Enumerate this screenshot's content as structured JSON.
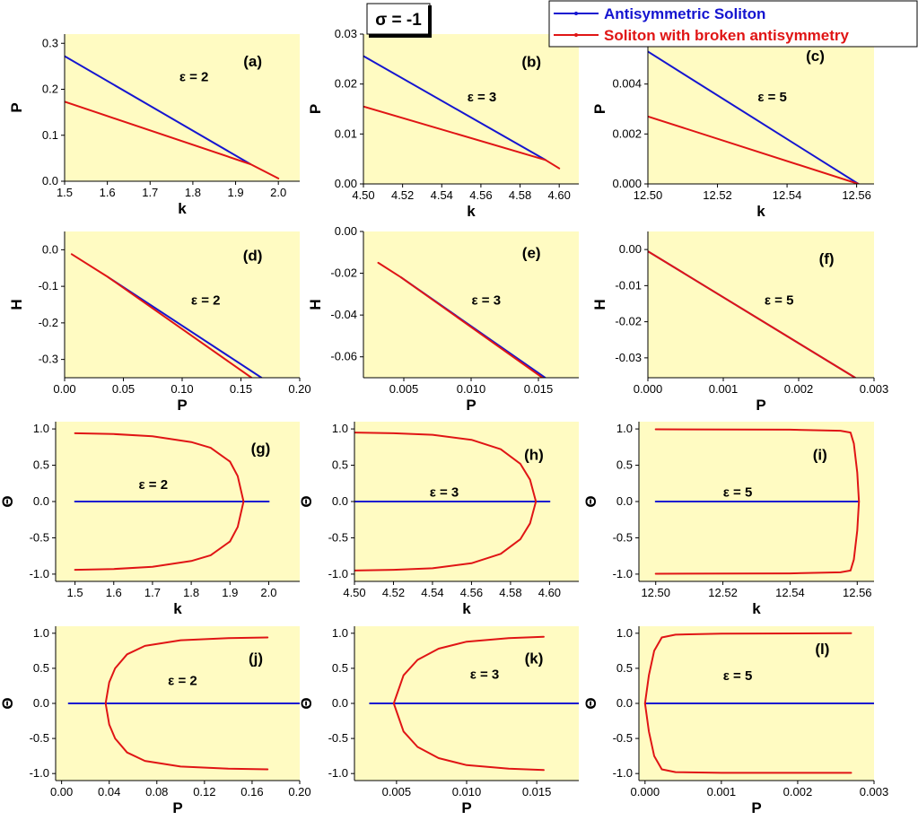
{
  "figure": {
    "sigma_label": "σ = -1",
    "legend": [
      {
        "name": "Antisymmetric Soliton",
        "color": "#1515d0"
      },
      {
        "name": "Soliton with broken antisymmetry",
        "color": "#e01515"
      }
    ]
  },
  "chart_data": [
    {
      "id": "a",
      "type": "line",
      "panel_label": "(a)",
      "annotation": "ε = 2",
      "xlabel": "k",
      "ylabel": "P",
      "xlim": [
        1.5,
        2.05
      ],
      "ylim": [
        0,
        0.32
      ],
      "xticks": [
        1.5,
        1.6,
        1.7,
        1.8,
        1.9,
        2.0
      ],
      "xtick_labels": [
        "1.5",
        "1.6",
        "1.7",
        "1.8",
        "1.9",
        "2.0"
      ],
      "yticks": [
        0,
        0.1,
        0.2,
        0.3
      ],
      "ytick_labels": [
        "0.0",
        "0.1",
        "0.2",
        "0.3"
      ],
      "series": [
        {
          "name": "Antisymmetric Soliton",
          "points": [
            [
              1.5,
              0.272
            ],
            [
              1.935,
              0.037
            ]
          ]
        },
        {
          "name": "Soliton with broken antisymmetry",
          "points": [
            [
              1.5,
              0.173
            ],
            [
              1.935,
              0.037
            ],
            [
              2.0,
              0.006
            ]
          ]
        }
      ]
    },
    {
      "id": "b",
      "type": "line",
      "panel_label": "(b)",
      "annotation": "ε = 3",
      "xlabel": "k",
      "ylabel": "P",
      "xlim": [
        4.5,
        4.61
      ],
      "ylim": [
        0,
        0.03
      ],
      "xticks": [
        4.5,
        4.52,
        4.54,
        4.56,
        4.58,
        4.6
      ],
      "xtick_labels": [
        "4.50",
        "4.52",
        "4.54",
        "4.56",
        "4.58",
        "4.60"
      ],
      "yticks": [
        0,
        0.01,
        0.02,
        0.03
      ],
      "ytick_labels": [
        "0.00",
        "0.01",
        "0.02",
        "0.03"
      ],
      "series": [
        {
          "name": "Antisymmetric Soliton",
          "points": [
            [
              4.5,
              0.0256
            ],
            [
              4.593,
              0.0048
            ]
          ]
        },
        {
          "name": "Soliton with broken antisymmetry",
          "points": [
            [
              4.5,
              0.0155
            ],
            [
              4.593,
              0.0048
            ],
            [
              4.6,
              0.0031
            ]
          ]
        }
      ]
    },
    {
      "id": "c",
      "type": "line",
      "panel_label": "(c)",
      "annotation": "ε = 5",
      "xlabel": "k",
      "ylabel": "P",
      "xlim": [
        12.5,
        12.565
      ],
      "ylim": [
        0,
        0.006
      ],
      "xticks": [
        12.5,
        12.52,
        12.54,
        12.56
      ],
      "xtick_labels": [
        "12.50",
        "12.52",
        "12.54",
        "12.56"
      ],
      "yticks": [
        0,
        0.002,
        0.004
      ],
      "ytick_labels": [
        "0.000",
        "0.002",
        "0.004"
      ],
      "series": [
        {
          "name": "Antisymmetric Soliton",
          "points": [
            [
              12.5,
              0.0053
            ],
            [
              12.5605,
              0.0
            ]
          ]
        },
        {
          "name": "Soliton with broken antisymmetry",
          "points": [
            [
              12.5,
              0.0027
            ],
            [
              12.5605,
              0.0
            ]
          ]
        }
      ]
    },
    {
      "id": "d",
      "type": "line",
      "panel_label": "(d)",
      "annotation": "ε = 2",
      "xlabel": "P",
      "ylabel": "H",
      "xlim": [
        0,
        0.2
      ],
      "ylim": [
        -0.35,
        0.05
      ],
      "xticks": [
        0,
        0.05,
        0.1,
        0.15,
        0.2
      ],
      "xtick_labels": [
        "0.00",
        "0.05",
        "0.10",
        "0.15",
        "0.20"
      ],
      "yticks": [
        0,
        -0.1,
        -0.2,
        -0.3
      ],
      "ytick_labels": [
        "0.0",
        "-0.1",
        "-0.2",
        "-0.3"
      ],
      "series": [
        {
          "name": "Antisymmetric Soliton",
          "points": [
            [
              0.037,
              -0.075
            ],
            [
              0.1675,
              -0.35
            ]
          ]
        },
        {
          "name": "Soliton with broken antisymmetry",
          "points": [
            [
              0.006,
              -0.012
            ],
            [
              0.037,
              -0.075
            ],
            [
              0.159,
              -0.35
            ]
          ]
        }
      ]
    },
    {
      "id": "e",
      "type": "line",
      "panel_label": "(e)",
      "annotation": "ε = 3",
      "xlabel": "P",
      "ylabel": "H",
      "xlim": [
        0.002,
        0.018
      ],
      "ylim": [
        -0.07,
        0
      ],
      "xticks": [
        0.005,
        0.01,
        0.015
      ],
      "xtick_labels": [
        "0.005",
        "0.010",
        "0.015"
      ],
      "yticks": [
        0,
        -0.02,
        -0.04,
        -0.06
      ],
      "ytick_labels": [
        "0.00",
        "-0.02",
        "-0.04",
        "-0.06"
      ],
      "series": [
        {
          "name": "Antisymmetric Soliton",
          "points": [
            [
              0.0048,
              -0.022
            ],
            [
              0.0155,
              -0.07
            ]
          ]
        },
        {
          "name": "Soliton with broken antisymmetry",
          "points": [
            [
              0.0031,
              -0.015
            ],
            [
              0.0048,
              -0.022
            ],
            [
              0.0153,
              -0.07
            ]
          ]
        }
      ]
    },
    {
      "id": "f",
      "type": "line",
      "panel_label": "(f)",
      "annotation": "ε = 5",
      "xlabel": "P",
      "ylabel": "H",
      "xlim": [
        0,
        0.003
      ],
      "ylim": [
        -0.0355,
        0.005
      ],
      "xticks": [
        0,
        0.001,
        0.002,
        0.003
      ],
      "xtick_labels": [
        "0.000",
        "0.001",
        "0.002",
        "0.003"
      ],
      "yticks": [
        0,
        -0.01,
        -0.02,
        -0.03
      ],
      "ytick_labels": [
        "0.00",
        "-0.01",
        "-0.02",
        "-0.03"
      ],
      "series": [
        {
          "name": "Antisymmetric Soliton",
          "points": [
            [
              0.0,
              -0.0005
            ],
            [
              0.00275,
              -0.0355
            ]
          ]
        },
        {
          "name": "Soliton with broken antisymmetry",
          "points": [
            [
              0.0,
              -0.0005
            ],
            [
              0.00275,
              -0.0355
            ]
          ]
        }
      ]
    },
    {
      "id": "g",
      "type": "line",
      "panel_label": "(g)",
      "annotation": "ε = 2",
      "xlabel": "k",
      "ylabel": "Θ",
      "xlim": [
        1.45,
        2.08
      ],
      "ylim": [
        -1.1,
        1.1
      ],
      "xticks": [
        1.5,
        1.6,
        1.7,
        1.8,
        1.9,
        2.0
      ],
      "xtick_labels": [
        "1.5",
        "1.6",
        "1.7",
        "1.8",
        "1.9",
        "2.0"
      ],
      "yticks": [
        1,
        0.5,
        0,
        -0.5,
        -1
      ],
      "ytick_labels": [
        "1.0",
        "0.5",
        "0.0",
        "-0.5",
        "-1.0"
      ],
      "series": [
        {
          "name": "Antisymmetric Soliton",
          "points": [
            [
              1.5,
              0
            ],
            [
              2.0,
              0
            ]
          ]
        },
        {
          "name": "Soliton with broken antisymmetry",
          "points": [
            [
              1.5,
              0.94
            ],
            [
              1.6,
              0.93
            ],
            [
              1.7,
              0.9
            ],
            [
              1.8,
              0.82
            ],
            [
              1.85,
              0.74
            ],
            [
              1.9,
              0.55
            ],
            [
              1.92,
              0.35
            ],
            [
              1.935,
              0
            ],
            [
              1.92,
              -0.35
            ],
            [
              1.9,
              -0.55
            ],
            [
              1.85,
              -0.74
            ],
            [
              1.8,
              -0.82
            ],
            [
              1.7,
              -0.9
            ],
            [
              1.6,
              -0.93
            ],
            [
              1.5,
              -0.94
            ]
          ]
        }
      ]
    },
    {
      "id": "h",
      "type": "line",
      "panel_label": "(h)",
      "annotation": "ε = 3",
      "xlabel": "k",
      "ylabel": "Θ",
      "xlim": [
        4.5,
        4.615
      ],
      "ylim": [
        -1.1,
        1.1
      ],
      "xticks": [
        4.5,
        4.52,
        4.54,
        4.56,
        4.58,
        4.6
      ],
      "xtick_labels": [
        "4.50",
        "4.52",
        "4.54",
        "4.56",
        "4.58",
        "4.60"
      ],
      "yticks": [
        1,
        0.5,
        0,
        -0.5,
        -1
      ],
      "ytick_labels": [
        "1.0",
        "0.5",
        "0.0",
        "-0.5",
        "-1.0"
      ],
      "series": [
        {
          "name": "Antisymmetric Soliton",
          "points": [
            [
              4.5,
              0
            ],
            [
              4.6,
              0
            ]
          ]
        },
        {
          "name": "Soliton with broken antisymmetry",
          "points": [
            [
              4.5,
              0.95
            ],
            [
              4.52,
              0.94
            ],
            [
              4.54,
              0.92
            ],
            [
              4.56,
              0.85
            ],
            [
              4.575,
              0.72
            ],
            [
              4.585,
              0.52
            ],
            [
              4.59,
              0.3
            ],
            [
              4.593,
              0
            ],
            [
              4.59,
              -0.3
            ],
            [
              4.585,
              -0.52
            ],
            [
              4.575,
              -0.72
            ],
            [
              4.56,
              -0.85
            ],
            [
              4.54,
              -0.92
            ],
            [
              4.52,
              -0.94
            ],
            [
              4.5,
              -0.95
            ]
          ]
        }
      ]
    },
    {
      "id": "i",
      "type": "line",
      "panel_label": "(i)",
      "annotation": "ε = 5",
      "xlabel": "k",
      "ylabel": "Θ",
      "xlim": [
        12.495,
        12.565
      ],
      "ylim": [
        -1.1,
        1.1
      ],
      "xticks": [
        12.5,
        12.52,
        12.54,
        12.56
      ],
      "xtick_labels": [
        "12.50",
        "12.52",
        "12.54",
        "12.56"
      ],
      "yticks": [
        1,
        0.5,
        0,
        -0.5,
        -1
      ],
      "ytick_labels": [
        "1.0",
        "0.5",
        "0.0",
        "-0.5",
        "-1.0"
      ],
      "series": [
        {
          "name": "Antisymmetric Soliton",
          "points": [
            [
              12.5,
              0
            ],
            [
              12.5605,
              0
            ]
          ]
        },
        {
          "name": "Soliton with broken antisymmetry",
          "points": [
            [
              12.5,
              0.995
            ],
            [
              12.54,
              0.99
            ],
            [
              12.555,
              0.975
            ],
            [
              12.558,
              0.95
            ],
            [
              12.559,
              0.8
            ],
            [
              12.56,
              0.4
            ],
            [
              12.5605,
              0
            ],
            [
              12.56,
              -0.4
            ],
            [
              12.559,
              -0.8
            ],
            [
              12.558,
              -0.95
            ],
            [
              12.555,
              -0.975
            ],
            [
              12.54,
              -0.99
            ],
            [
              12.5,
              -0.995
            ]
          ]
        }
      ]
    },
    {
      "id": "j",
      "type": "line",
      "panel_label": "(j)",
      "annotation": "ε = 2",
      "xlabel": "P",
      "ylabel": "Θ",
      "xlim": [
        -0.005,
        0.2
      ],
      "ylim": [
        -1.1,
        1.1
      ],
      "xticks": [
        0,
        0.04,
        0.08,
        0.12,
        0.16,
        0.2
      ],
      "xtick_labels": [
        "0.00",
        "0.04",
        "0.08",
        "0.12",
        "0.16",
        "0.20"
      ],
      "yticks": [
        1,
        0.5,
        0,
        -0.5,
        -1
      ],
      "ytick_labels": [
        "1.0",
        "0.5",
        "0.0",
        "-0.5",
        "-1.0"
      ],
      "series": [
        {
          "name": "Antisymmetric Soliton",
          "points": [
            [
              0.006,
              0
            ],
            [
              0.2,
              0
            ]
          ]
        },
        {
          "name": "Soliton with broken antisymmetry",
          "points": [
            [
              0.173,
              0.94
            ],
            [
              0.14,
              0.93
            ],
            [
              0.1,
              0.9
            ],
            [
              0.07,
              0.82
            ],
            [
              0.055,
              0.7
            ],
            [
              0.045,
              0.5
            ],
            [
              0.04,
              0.3
            ],
            [
              0.037,
              0
            ],
            [
              0.04,
              -0.3
            ],
            [
              0.045,
              -0.5
            ],
            [
              0.055,
              -0.7
            ],
            [
              0.07,
              -0.82
            ],
            [
              0.1,
              -0.9
            ],
            [
              0.14,
              -0.93
            ],
            [
              0.173,
              -0.94
            ]
          ]
        }
      ]
    },
    {
      "id": "k",
      "type": "line",
      "panel_label": "(k)",
      "annotation": "ε = 3",
      "xlabel": "P",
      "ylabel": "Θ",
      "xlim": [
        0.002,
        0.018
      ],
      "ylim": [
        -1.1,
        1.1
      ],
      "xticks": [
        0.005,
        0.01,
        0.015
      ],
      "xtick_labels": [
        "0.005",
        "0.010",
        "0.015"
      ],
      "yticks": [
        1,
        0.5,
        0,
        -0.5,
        -1
      ],
      "ytick_labels": [
        "1.0",
        "0.5",
        "0.0",
        "-0.5",
        "-1.0"
      ],
      "series": [
        {
          "name": "Antisymmetric Soliton",
          "points": [
            [
              0.0031,
              0
            ],
            [
              0.018,
              0
            ]
          ]
        },
        {
          "name": "Soliton with broken antisymmetry",
          "points": [
            [
              0.0155,
              0.95
            ],
            [
              0.013,
              0.93
            ],
            [
              0.01,
              0.88
            ],
            [
              0.008,
              0.78
            ],
            [
              0.0065,
              0.62
            ],
            [
              0.0055,
              0.4
            ],
            [
              0.0048,
              0
            ],
            [
              0.0055,
              -0.4
            ],
            [
              0.0065,
              -0.62
            ],
            [
              0.008,
              -0.78
            ],
            [
              0.01,
              -0.88
            ],
            [
              0.013,
              -0.93
            ],
            [
              0.0155,
              -0.95
            ]
          ]
        }
      ]
    },
    {
      "id": "l",
      "type": "line",
      "panel_label": "(l)",
      "annotation": "ε = 5",
      "xlabel": "P",
      "ylabel": "Θ",
      "xlim": [
        -8e-05,
        0.003
      ],
      "ylim": [
        -1.1,
        1.1
      ],
      "xticks": [
        0,
        0.001,
        0.002,
        0.003
      ],
      "xtick_labels": [
        "0.000",
        "0.001",
        "0.002",
        "0.003"
      ],
      "yticks": [
        1,
        0.5,
        0,
        -0.5,
        -1
      ],
      "ytick_labels": [
        "1.0",
        "0.5",
        "0.0",
        "-0.5",
        "-1.0"
      ],
      "series": [
        {
          "name": "Antisymmetric Soliton",
          "points": [
            [
              0.0,
              0
            ],
            [
              0.003,
              0
            ]
          ]
        },
        {
          "name": "Soliton with broken antisymmetry",
          "points": [
            [
              0.0027,
              1.0
            ],
            [
              0.001,
              0.995
            ],
            [
              0.0004,
              0.98
            ],
            [
              0.00022,
              0.94
            ],
            [
              0.00012,
              0.75
            ],
            [
              5e-05,
              0.4
            ],
            [
              0.0,
              0
            ],
            [
              5e-05,
              -0.4
            ],
            [
              0.00012,
              -0.75
            ],
            [
              0.00022,
              -0.94
            ],
            [
              0.0004,
              -0.98
            ],
            [
              0.001,
              -0.99
            ],
            [
              0.0027,
              -0.99
            ]
          ]
        }
      ]
    }
  ]
}
